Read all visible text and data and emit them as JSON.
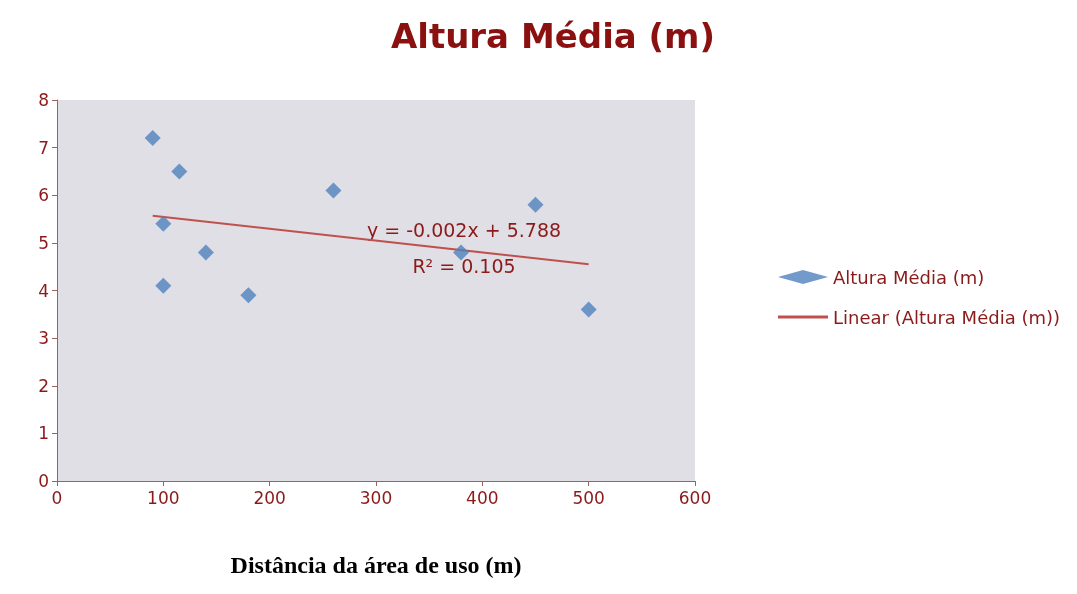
{
  "chart_data": {
    "type": "scatter",
    "title": "Altura Média (m)",
    "xlabel": "Distância da área de uso (m)",
    "xlim": [
      0,
      600
    ],
    "xticks": [
      0,
      100,
      200,
      300,
      400,
      500,
      600
    ],
    "ylim": [
      0,
      8
    ],
    "yticks": [
      0,
      1,
      2,
      3,
      4,
      5,
      6,
      7,
      8
    ],
    "grid": false,
    "legend": "right",
    "series": [
      {
        "name": "Altura Média (m)",
        "marker": "diamond",
        "color": "#4f81bd",
        "x": [
          90,
          115,
          100,
          100,
          140,
          180,
          260,
          380,
          450,
          500
        ],
        "values": [
          7.2,
          6.5,
          5.4,
          4.1,
          4.8,
          3.9,
          6.1,
          4.8,
          5.8,
          3.6
        ]
      },
      {
        "name": "Linear (Altura Média (m))",
        "type": "line",
        "color": "#c0504d",
        "x": [
          90,
          500
        ],
        "values": [
          5.57,
          4.55
        ]
      }
    ],
    "annotations": [
      "y = -0.002x + 5.788",
      "R² = 0.105"
    ]
  }
}
